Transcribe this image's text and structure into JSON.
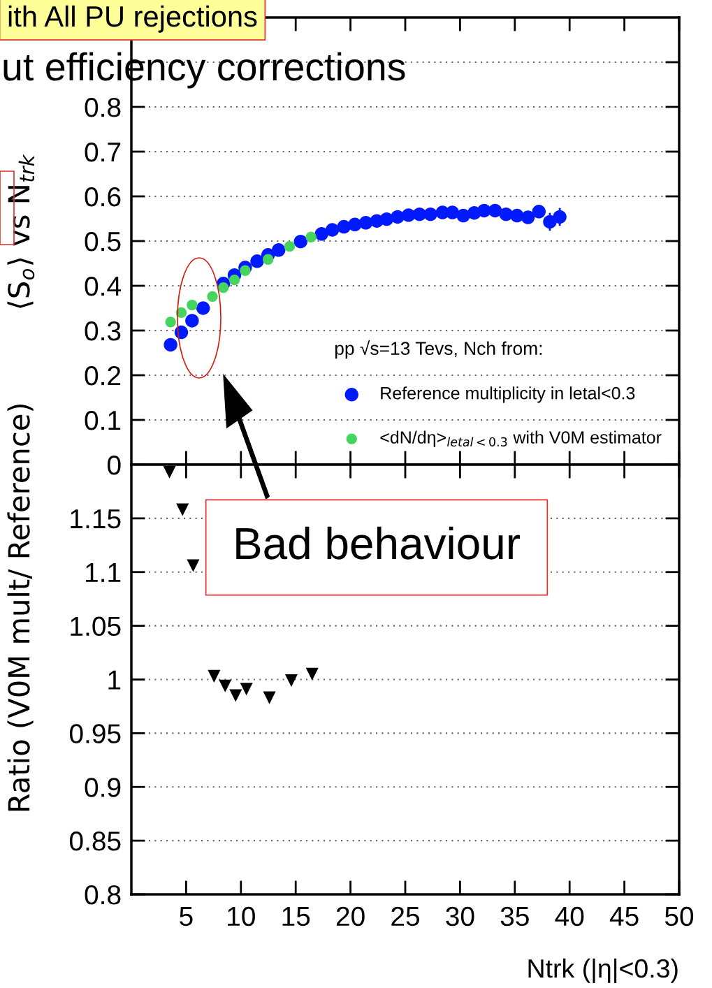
{
  "chart_data": [
    {
      "type": "scatter",
      "ylabel": "⟨S$_{o}$⟩ vs N$_{trk}$",
      "legend_title": "pp √s=13 Tevs, Nch from:",
      "legend": "lower right",
      "grid": "y",
      "marker": "circle",
      "tick_labels": "y",
      "xlim": [
        0,
        50
      ],
      "xticks": [
        {
          "value": 5,
          "label": null
        },
        {
          "value": 10,
          "label": null
        },
        {
          "value": 15,
          "label": null
        },
        {
          "value": 20,
          "label": null
        },
        {
          "value": 25,
          "label": null
        },
        {
          "value": 30,
          "label": null
        },
        {
          "value": 35,
          "label": null
        },
        {
          "value": 40,
          "label": null
        },
        {
          "value": 45,
          "label": null
        },
        {
          "value": 50,
          "label": null
        }
      ],
      "ylim": [
        0,
        1
      ],
      "yticks": [
        0,
        0.1,
        0.2,
        0.3,
        0.4,
        0.5,
        0.6,
        0.7,
        0.8,
        {
          "value": 0.9,
          "label": null
        }
      ],
      "annotations": [
        "ith All PU rejections",
        "ut efficiency corrections",
        "Bad behaviour"
      ],
      "series": [
        {
          "name": "Reference multiplicity in letal<0.3",
          "color": "#0019ff",
          "x": [
            3.58,
            4.56,
            5.54,
            6.55,
            8.4,
            9.41,
            10.39,
            11.48,
            12.48,
            13.44,
            15.45,
            17.36,
            18.34,
            19.4,
            20.4,
            21.4,
            22.4,
            23.3,
            24.3,
            25.3,
            26.3,
            27.3,
            28.4,
            29.3,
            30.3,
            31.3,
            32.2,
            33.2,
            34.2,
            35.2,
            36.2,
            37.2,
            38.2,
            39.1
          ],
          "values": [
            0.268,
            0.296,
            0.322,
            0.35,
            0.405,
            0.424,
            0.441,
            0.455,
            0.469,
            0.48,
            0.499,
            0.516,
            0.525,
            0.532,
            0.537,
            0.541,
            0.545,
            0.549,
            0.554,
            0.558,
            0.56,
            0.56,
            0.564,
            0.564,
            0.557,
            0.563,
            0.568,
            0.568,
            0.56,
            0.557,
            0.553,
            0.566,
            0.543,
            0.554
          ],
          "errors": [
            null,
            null,
            null,
            null,
            null,
            null,
            null,
            null,
            null,
            null,
            null,
            null,
            null,
            null,
            null,
            null,
            null,
            null,
            null,
            null,
            null,
            null,
            null,
            null,
            null,
            null,
            null,
            null,
            null,
            null,
            null,
            null,
            0.02,
            0.02
          ]
        },
        {
          "name": "<dN/dη>$_{letal<0.3}$ with V0M estimator",
          "color": "#45d45e",
          "x": [
            3.58,
            4.56,
            5.54,
            7.4,
            8.4,
            9.41,
            10.39,
            12.48,
            14.44,
            16.4
          ],
          "values": [
            0.319,
            0.34,
            0.357,
            0.376,
            0.396,
            0.413,
            0.434,
            0.459,
            0.488,
            0.509
          ]
        }
      ]
    },
    {
      "type": "scatter",
      "xlabel": "Ntrk (|η|<0.3)",
      "ylabel": "Ratio (V0M mult/ Reference)",
      "grid": "y",
      "marker": "triangle",
      "xlim": [
        0,
        50
      ],
      "xticks": [
        5,
        10,
        15,
        20,
        25,
        30,
        35,
        40,
        45,
        50
      ],
      "ylim": [
        0.8,
        1.2
      ],
      "yticks": [
        0.8,
        0.85,
        0.9,
        0.95,
        1,
        1.05,
        1.1,
        1.15
      ],
      "series": [
        {
          "color": "#000000",
          "x": [
            3.48,
            4.67,
            5.64,
            7.55,
            8.56,
            9.52,
            10.5,
            12.6,
            14.6,
            16.5
          ],
          "values": [
            1.193,
            1.158,
            1.106,
            1.003,
            0.994,
            0.985,
            0.991,
            0.983,
            0.999,
            1.005
          ]
        }
      ]
    }
  ]
}
